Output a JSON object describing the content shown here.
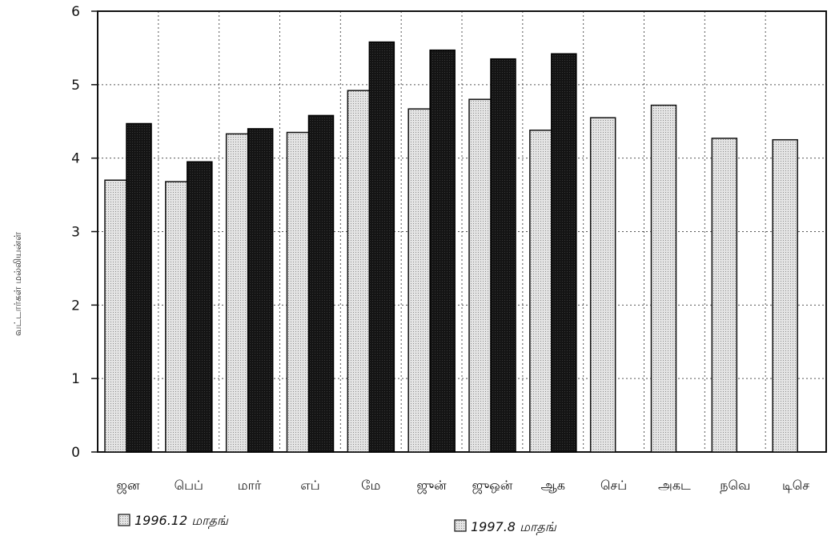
{
  "chart_data": {
    "type": "bar",
    "ylabel": "வட்டார்கள் மல்லியன்ள்",
    "xlabel": "",
    "ylim": [
      0,
      6
    ],
    "yticks": [
      "0",
      "1",
      "2",
      "3",
      "4",
      "5",
      "6"
    ],
    "grid": true,
    "legend_position": "bottom",
    "categories": [
      "ஜன",
      "பெப்",
      "மார்",
      "எப்",
      "மே",
      "ஜுன்",
      "ஜுஒன்",
      "ஆக",
      "செப்",
      "அகட",
      "நவெ",
      "டிசெ"
    ],
    "series": [
      {
        "name": "1997.8 மாதங்",
        "values": [
          3.7,
          3.68,
          4.33,
          4.35,
          4.92,
          4.67,
          4.8,
          4.38,
          4.55,
          4.72,
          4.27,
          4.25
        ]
      },
      {
        "name": "1996.12 மாதங்",
        "values": [
          4.47,
          3.95,
          4.4,
          4.58,
          5.58,
          5.47,
          5.35,
          5.42,
          null,
          null,
          null,
          null
        ]
      }
    ],
    "colors": {
      "light": "#d2d2d2",
      "dark": "#141414",
      "grid": "#555555",
      "axis": "#111111"
    }
  }
}
